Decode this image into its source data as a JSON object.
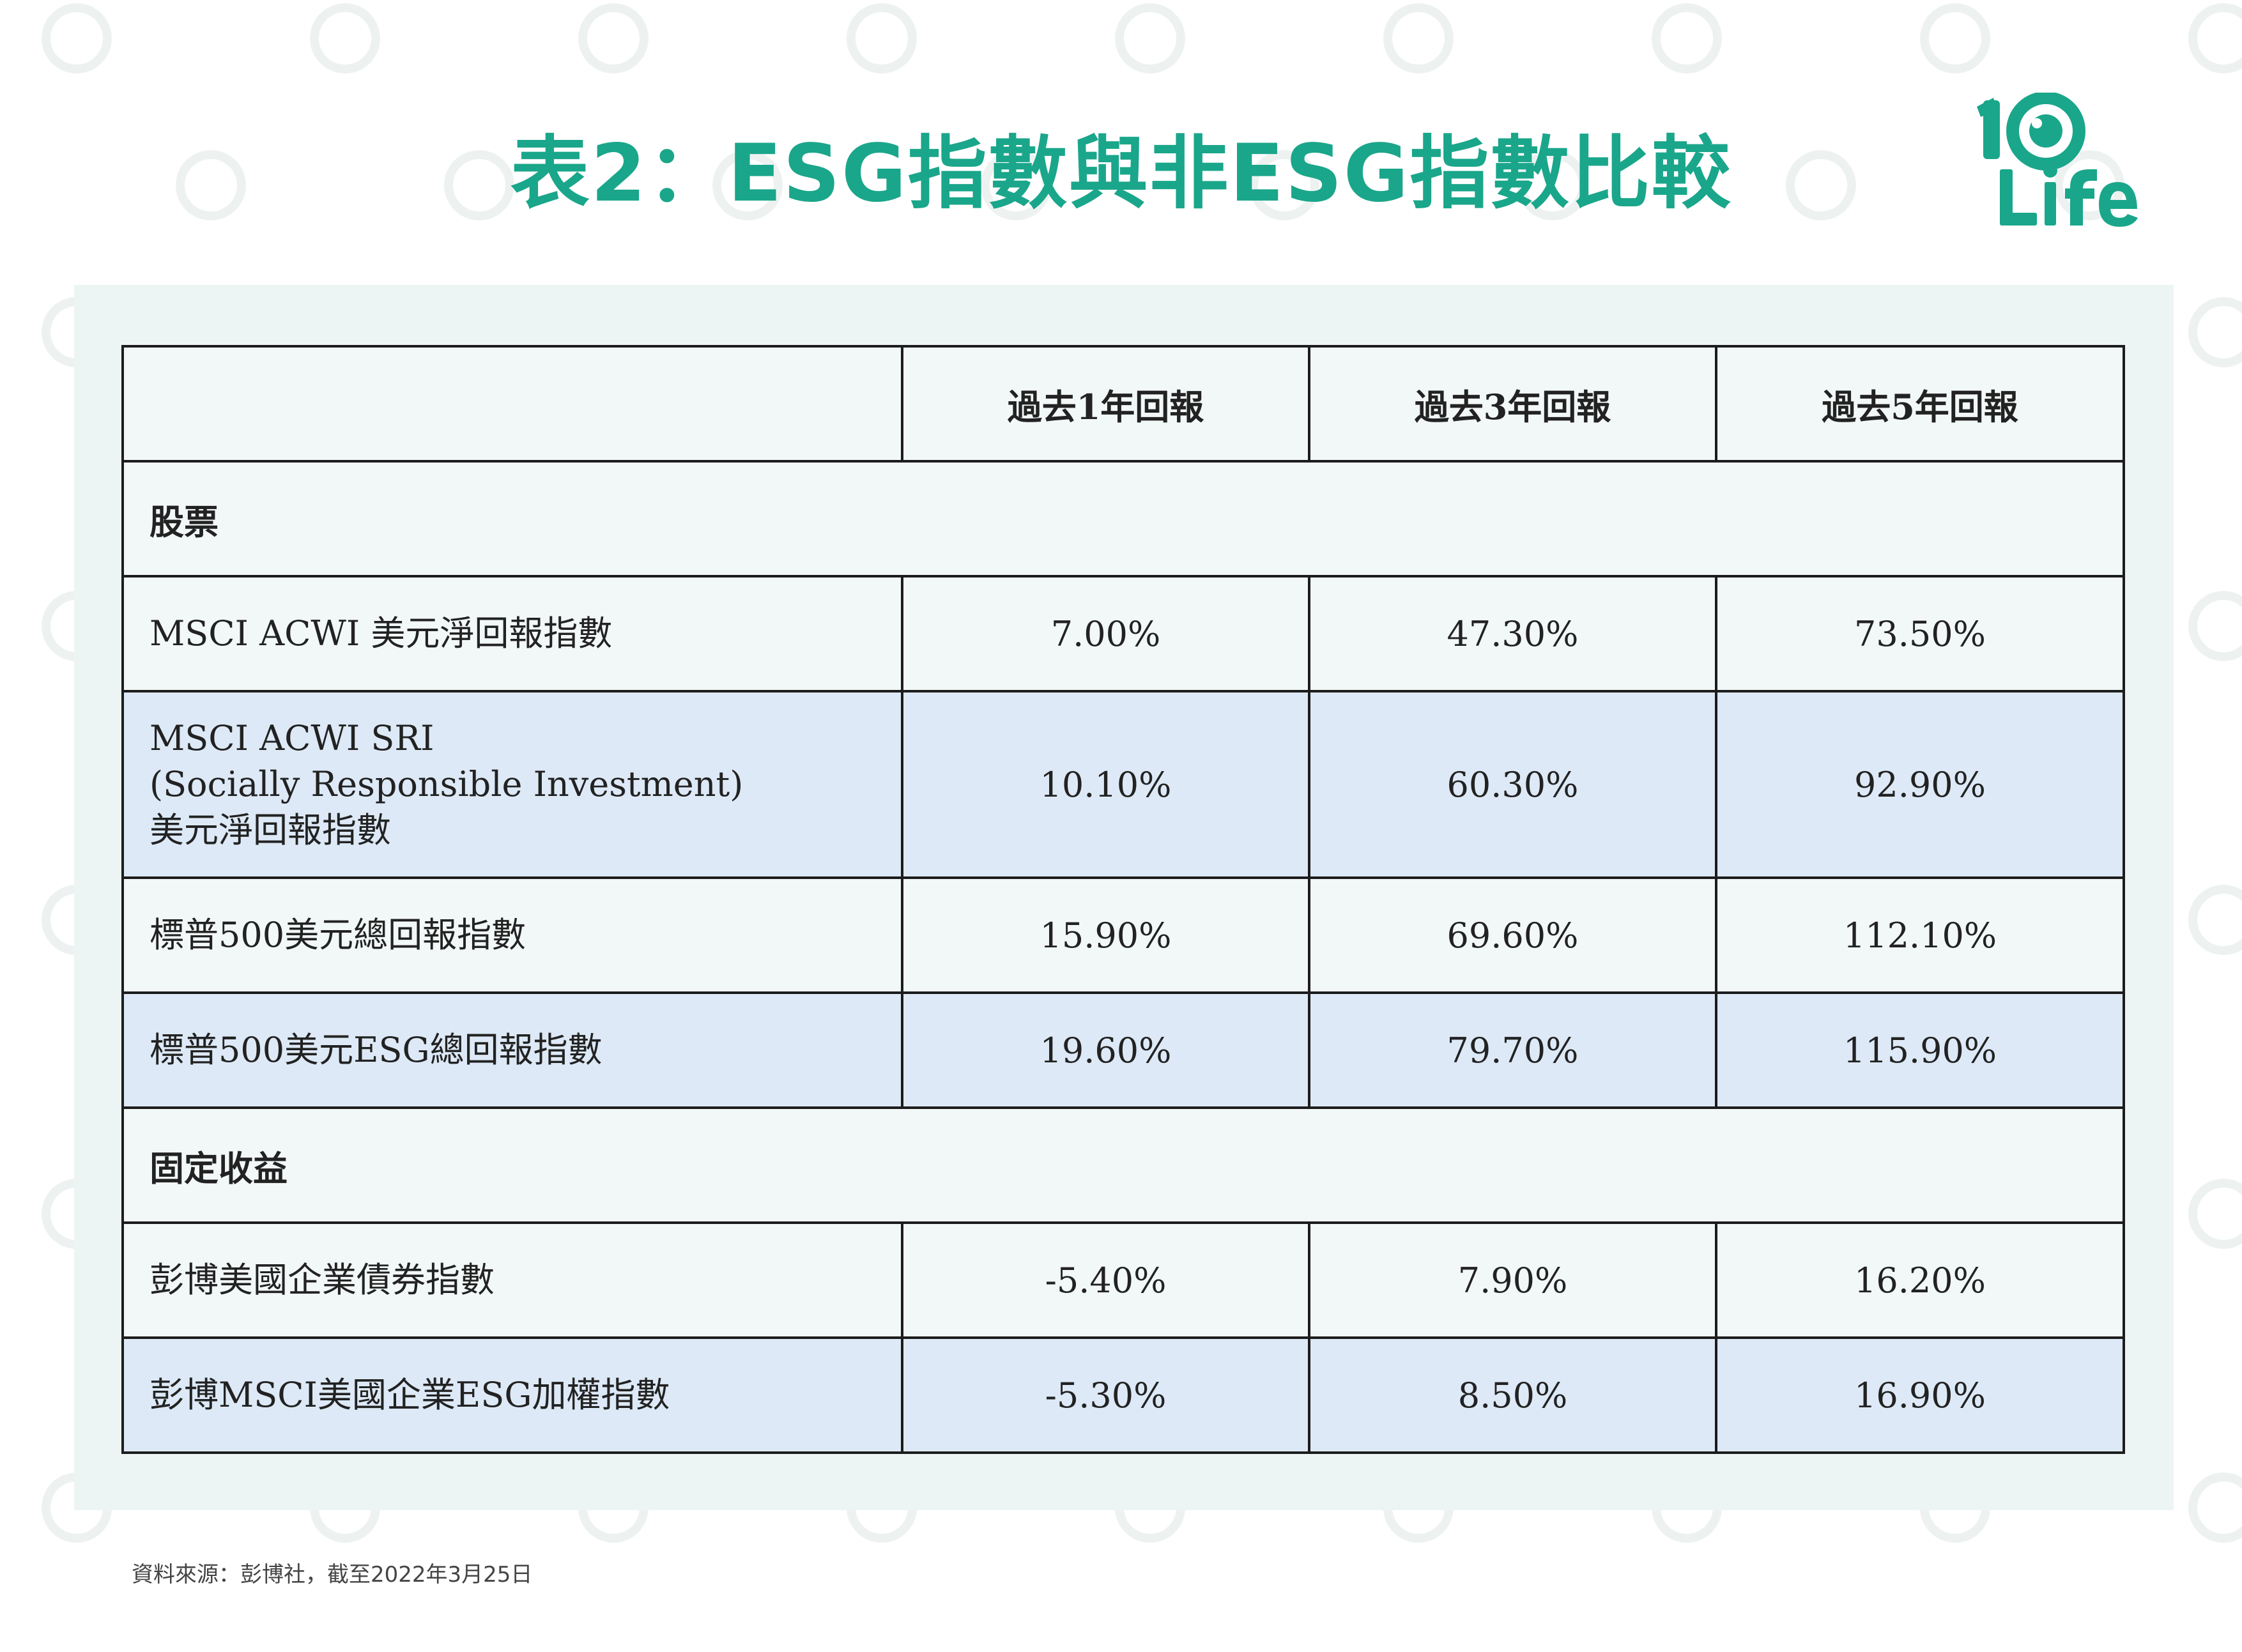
{
  "title": "表2：ESG指數與非ESG指數比較",
  "logo": {
    "top_text": "10",
    "bottom_text": "Life",
    "color": "#1aa68a"
  },
  "colors": {
    "accent": "#1aa68a",
    "panel": "#edf5f4",
    "row_shaded": "#dde9f6",
    "border": "#1c1c1c"
  },
  "table": {
    "headers": [
      "",
      "過去1年回報",
      "過去3年回報",
      "過去5年回報"
    ],
    "sections": [
      {
        "name": "股票",
        "rows": [
          {
            "label_lines": [
              "MSCI ACWI 美元淨回報指數"
            ],
            "values": [
              "7.00%",
              "47.30%",
              "73.50%"
            ]
          },
          {
            "label_lines": [
              "MSCI ACWI SRI",
              "(Socially Responsible Investment)",
              "美元淨回報指數"
            ],
            "values": [
              "10.10%",
              "60.30%",
              "92.90%"
            ]
          },
          {
            "label_lines": [
              "標普500美元總回報指數"
            ],
            "values": [
              "15.90%",
              "69.60%",
              "112.10%"
            ]
          },
          {
            "label_lines": [
              "標普500美元ESG總回報指數"
            ],
            "values": [
              "19.60%",
              "79.70%",
              "115.90%"
            ]
          }
        ]
      },
      {
        "name": "固定收益",
        "rows": [
          {
            "label_lines": [
              "彭博美國企業債券指數"
            ],
            "values": [
              "-5.40%",
              "7.90%",
              "16.20%"
            ]
          },
          {
            "label_lines": [
              "彭博MSCI美國企業ESG加權指數"
            ],
            "values": [
              "-5.30%",
              "8.50%",
              "16.90%"
            ]
          }
        ]
      }
    ]
  },
  "source": "資料來源：彭博社，截至2022年3月25日"
}
